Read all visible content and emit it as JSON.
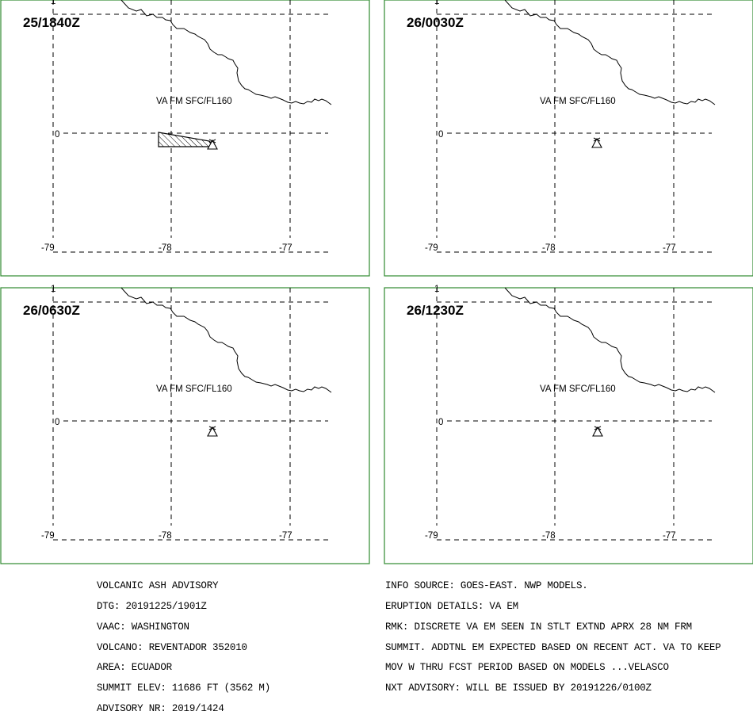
{
  "panels": [
    {
      "time": "25/1840Z",
      "ash_label": "VA FM SFC/FL160",
      "variant": 0
    },
    {
      "time": "26/0030Z",
      "ash_label": "VA FM SFC/FL160",
      "variant": 1
    },
    {
      "time": "26/0630Z",
      "ash_label": "VA FM SFC/FL160",
      "variant": 2
    },
    {
      "time": "26/1230Z",
      "ash_label": "VA FM SFC/FL160",
      "variant": 3
    }
  ],
  "grid_labels": {
    "lat_top": "1",
    "lat_mid": "0",
    "lon": [
      "-79",
      "-78",
      "-77"
    ]
  },
  "colors": {
    "frame": "#2f8a2f",
    "ink": "#000000"
  },
  "advisory_left": [
    "VOLCANIC ASH ADVISORY",
    "DTG: 20191225/1901Z",
    "VAAC: WASHINGTON",
    "VOLCANO: REVENTADOR 352010",
    "AREA: ECUADOR",
    "SUMMIT ELEV: 11686 FT (3562 M)",
    "ADVISORY NR: 2019/1424"
  ],
  "advisory_right": [
    "INFO SOURCE: GOES-EAST. NWP MODELS.",
    "ERUPTION DETAILS: VA EM",
    "RMK: DISCRETE VA EM SEEN IN STLT EXTND APRX 28 NM FRM",
    "SUMMIT. ADDTNL EM EXPECTED BASED ON RECENT ACT. VA TO KEEP",
    "MOV W THRU FCST PERIOD BASED ON MODELS ...VELASCO",
    "NXT ADVISORY: WILL BE ISSUED BY 20191226/0100Z"
  ]
}
